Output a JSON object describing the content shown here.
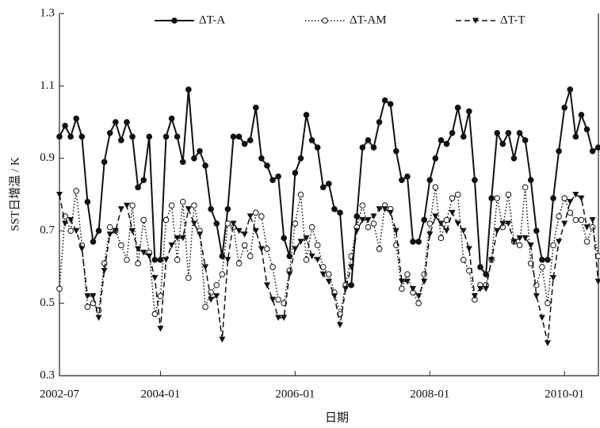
{
  "chart_data": {
    "type": "line",
    "x_label": "日期",
    "y_label": "SST日增温 / K",
    "x": [
      "2002-07",
      "2002-08",
      "2002-09",
      "2002-10",
      "2002-11",
      "2002-12",
      "2003-01",
      "2003-02",
      "2003-03",
      "2003-04",
      "2003-05",
      "2003-06",
      "2003-07",
      "2003-08",
      "2003-09",
      "2003-10",
      "2003-11",
      "2003-12",
      "2004-01",
      "2004-02",
      "2004-03",
      "2004-04",
      "2004-05",
      "2004-06",
      "2004-07",
      "2004-08",
      "2004-09",
      "2004-10",
      "2004-11",
      "2004-12",
      "2005-01",
      "2005-02",
      "2005-03",
      "2005-04",
      "2005-05",
      "2005-06",
      "2005-07",
      "2005-08",
      "2005-09",
      "2005-10",
      "2005-11",
      "2005-12",
      "2006-01",
      "2006-02",
      "2006-03",
      "2006-04",
      "2006-05",
      "2006-06",
      "2006-07",
      "2006-08",
      "2006-09",
      "2006-10",
      "2006-11",
      "2006-12",
      "2007-01",
      "2007-02",
      "2007-03",
      "2007-04",
      "2007-05",
      "2007-06",
      "2007-07",
      "2007-08",
      "2007-09",
      "2007-10",
      "2007-11",
      "2007-12",
      "2008-01",
      "2008-02",
      "2008-03",
      "2008-04",
      "2008-05",
      "2008-06",
      "2008-07",
      "2008-08",
      "2008-09",
      "2008-10",
      "2008-11",
      "2008-12",
      "2009-01",
      "2009-02",
      "2009-03",
      "2009-04",
      "2009-05",
      "2009-06",
      "2009-07",
      "2009-08",
      "2009-09",
      "2009-10",
      "2009-11",
      "2009-12",
      "2010-01",
      "2010-02",
      "2010-03",
      "2010-04",
      "2010-05",
      "2010-06",
      "2010-07"
    ],
    "xticks": [
      "2002-07",
      "2004-01",
      "2006-01",
      "2008-01",
      "2010-01"
    ],
    "ylim": [
      0.3,
      1.3
    ],
    "yticks": [
      0.3,
      0.5,
      0.7,
      0.9,
      1.1,
      1.3
    ],
    "series": [
      {
        "name": "ΔT-A",
        "color": "#111111",
        "dash": "solid",
        "marker": "filled-circle",
        "values": [
          0.96,
          0.99,
          0.96,
          1.01,
          0.96,
          0.78,
          0.67,
          0.7,
          0.89,
          0.97,
          1.0,
          0.95,
          1.0,
          0.96,
          0.82,
          0.84,
          0.96,
          0.62,
          0.62,
          0.96,
          1.01,
          0.96,
          0.89,
          1.09,
          0.9,
          0.92,
          0.88,
          0.76,
          0.72,
          0.63,
          0.76,
          0.96,
          0.96,
          0.94,
          0.95,
          1.04,
          0.9,
          0.88,
          0.84,
          0.85,
          0.68,
          0.63,
          0.86,
          0.9,
          1.02,
          0.95,
          0.93,
          0.82,
          0.83,
          0.76,
          0.75,
          0.55,
          0.55,
          0.74,
          0.93,
          0.95,
          0.93,
          1.0,
          1.06,
          1.05,
          0.92,
          0.84,
          0.85,
          0.67,
          0.67,
          0.73,
          0.84,
          0.9,
          0.95,
          0.94,
          0.97,
          1.04,
          0.96,
          1.03,
          0.84,
          0.6,
          0.58,
          0.79,
          0.97,
          0.94,
          0.97,
          0.9,
          0.97,
          0.95,
          0.84,
          0.7,
          0.62,
          0.62,
          0.79,
          0.92,
          1.04,
          1.09,
          0.96,
          1.02,
          0.98,
          0.92,
          0.93
        ]
      },
      {
        "name": "ΔT-AM",
        "color": "#111111",
        "dash": "dotted",
        "marker": "open-circle",
        "values": [
          0.54,
          0.74,
          0.7,
          0.81,
          0.66,
          0.49,
          0.5,
          0.48,
          0.61,
          0.71,
          0.7,
          0.66,
          0.62,
          0.77,
          0.61,
          0.73,
          0.64,
          0.47,
          0.52,
          0.73,
          0.77,
          0.62,
          0.78,
          0.57,
          0.77,
          0.7,
          0.49,
          0.53,
          0.55,
          0.58,
          0.72,
          0.71,
          0.61,
          0.66,
          0.63,
          0.75,
          0.74,
          0.65,
          0.6,
          0.51,
          0.5,
          0.59,
          0.72,
          0.8,
          0.62,
          0.71,
          0.66,
          0.6,
          0.58,
          0.53,
          0.47,
          0.55,
          0.63,
          0.71,
          0.77,
          0.71,
          0.72,
          0.65,
          0.77,
          0.76,
          0.66,
          0.54,
          0.58,
          0.53,
          0.5,
          0.58,
          0.72,
          0.82,
          0.68,
          0.73,
          0.79,
          0.8,
          0.62,
          0.59,
          0.51,
          0.55,
          0.55,
          0.62,
          0.79,
          0.71,
          0.8,
          0.67,
          0.66,
          0.82,
          0.61,
          0.55,
          0.6,
          0.5,
          0.66,
          0.74,
          0.79,
          0.75,
          0.73,
          0.73,
          0.67,
          0.71,
          0.63
        ]
      },
      {
        "name": "ΔT-T",
        "color": "#111111",
        "dash": "dashed",
        "marker": "filled-triangle-down",
        "values": [
          0.8,
          0.72,
          0.73,
          0.7,
          0.65,
          0.52,
          0.52,
          0.46,
          0.59,
          0.69,
          0.7,
          0.76,
          0.77,
          0.7,
          0.65,
          0.64,
          0.63,
          0.57,
          0.43,
          0.62,
          0.66,
          0.68,
          0.68,
          0.76,
          0.72,
          0.69,
          0.6,
          0.51,
          0.52,
          0.4,
          0.62,
          0.72,
          0.7,
          0.69,
          0.74,
          0.7,
          0.65,
          0.55,
          0.51,
          0.46,
          0.46,
          0.58,
          0.65,
          0.67,
          0.68,
          0.63,
          0.62,
          0.58,
          0.56,
          0.52,
          0.44,
          0.54,
          0.6,
          0.7,
          0.73,
          0.73,
          0.74,
          0.76,
          0.76,
          0.75,
          0.7,
          0.56,
          0.56,
          0.54,
          0.52,
          0.56,
          0.69,
          0.74,
          0.72,
          0.7,
          0.75,
          0.72,
          0.7,
          0.65,
          0.52,
          0.54,
          0.54,
          0.62,
          0.7,
          0.72,
          0.72,
          0.67,
          0.68,
          0.68,
          0.66,
          0.52,
          0.46,
          0.39,
          0.57,
          0.67,
          0.72,
          0.78,
          0.8,
          0.79,
          0.71,
          0.73,
          0.56
        ]
      }
    ]
  }
}
